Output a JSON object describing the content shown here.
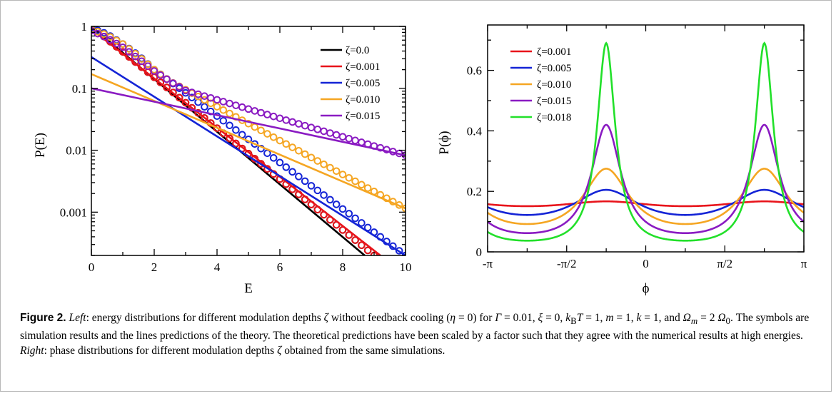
{
  "caption": {
    "figure_label": "Figure 2.",
    "text_html": "<i>Left</i>: energy distributions for different modulation depths <i>ζ</i> without feedback cooling (<i>η</i> = 0) for <i>Γ</i> = 0.01, <i>ξ</i> = 0, <i>k</i><sub>B</sub><i>T</i> = 1, <i>m</i> = 1, <i>k</i> = 1, and <i>Ω<sub>m</sub></i> = 2 <i>Ω</i><sub>0</sub>. The symbols are simulation results and the lines predictions of the theory. The theoretical predictions have been scaled by a factor such that they agree with the numerical results at high energies. <i>Right</i>: phase distributions for different modulation depths <i>ζ</i> obtained from the same simulations."
  },
  "colors": {
    "black": "#000000",
    "red": "#e8141b",
    "blue": "#1424d6",
    "orange": "#f5a623",
    "purple": "#8a1bc2",
    "green": "#22e02a"
  },
  "chart_data": [
    {
      "type": "line",
      "xlabel": "E",
      "ylabel": "P(E)",
      "xlim": [
        0,
        10
      ],
      "ylim": [
        0.0002,
        1
      ],
      "yscale": "log",
      "xticks": [
        "0",
        "2",
        "4",
        "6",
        "8",
        "10"
      ],
      "yticks": [
        "1",
        "0.1",
        "0.01",
        "0.001"
      ],
      "legend_position": "top-right",
      "series": [
        {
          "name": "ζ=0.0",
          "color_key": "black",
          "sim_points": [
            [
              0,
              1.0
            ],
            [
              9.0,
              0.0002
            ]
          ],
          "sim_x_max": 9.0,
          "theory": {
            "x": [
              0,
              8.7
            ],
            "y": [
              1.0,
              0.0002
            ]
          }
        },
        {
          "name": "ζ=0.001",
          "color_key": "red",
          "sim_points": [
            [
              0,
              1.0
            ],
            [
              9.0,
              0.0002
            ]
          ],
          "sim_x_max": 9.0,
          "theory": {
            "x": [
              0,
              9.2
            ],
            "y": [
              0.9,
              0.0002
            ]
          }
        },
        {
          "name": "ζ=0.005",
          "color_key": "blue",
          "sim_points": [
            [
              0,
              0.95
            ],
            [
              0.5,
              0.75
            ],
            [
              1,
              0.52
            ],
            [
              1.5,
              0.34
            ],
            [
              2,
              0.2
            ],
            [
              10,
              0.0002
            ]
          ],
          "sim_x_max": 10,
          "theory": {
            "x": [
              0,
              10
            ],
            "y": [
              0.32,
              0.0002
            ]
          }
        },
        {
          "name": "ζ=0.010",
          "color_key": "orange",
          "sim_points": [
            [
              0,
              0.9
            ],
            [
              0.5,
              0.72
            ],
            [
              1,
              0.52
            ],
            [
              1.5,
              0.33
            ],
            [
              2,
              0.2
            ],
            [
              2.5,
              0.13
            ],
            [
              10,
              0.00115
            ]
          ],
          "sim_x_max": 10,
          "theory": {
            "x": [
              0,
              10
            ],
            "y": [
              0.17,
              0.00115
            ]
          }
        },
        {
          "name": "ζ=0.015",
          "color_key": "purple",
          "sim_points": [
            [
              0,
              0.85
            ],
            [
              0.5,
              0.65
            ],
            [
              1,
              0.46
            ],
            [
              1.5,
              0.3
            ],
            [
              2,
              0.19
            ],
            [
              2.5,
              0.13
            ],
            [
              3,
              0.092
            ],
            [
              10,
              0.0083
            ]
          ],
          "sim_x_max": 10,
          "theory": {
            "x": [
              0,
              10
            ],
            "y": [
              0.1,
              0.0083
            ]
          }
        }
      ]
    },
    {
      "type": "line",
      "xlabel": "ϕ",
      "ylabel": "P(ϕ)",
      "xlim": [
        -3.14159,
        3.14159
      ],
      "ylim": [
        0,
        0.75
      ],
      "xticks": [
        "-π",
        "-π/2",
        "0",
        "π/2",
        "π"
      ],
      "yticks": [
        "0",
        "0.2",
        "0.4",
        "0.6"
      ],
      "legend_position": "top-left",
      "series": [
        {
          "name": "ζ=0.001",
          "color_key": "red",
          "peak": 0.167,
          "trough": 0.151,
          "edge": 0.157
        },
        {
          "name": "ζ=0.005",
          "color_key": "blue",
          "peak": 0.205,
          "trough": 0.122,
          "edge": 0.152
        },
        {
          "name": "ζ=0.010",
          "color_key": "orange",
          "peak": 0.275,
          "trough": 0.092,
          "edge": 0.138
        },
        {
          "name": "ζ=0.015",
          "color_key": "purple",
          "peak": 0.42,
          "trough": 0.062,
          "edge": 0.105
        },
        {
          "name": "ζ=0.018",
          "color_key": "green",
          "peak": 0.69,
          "trough": 0.037,
          "edge": 0.072
        }
      ]
    }
  ]
}
